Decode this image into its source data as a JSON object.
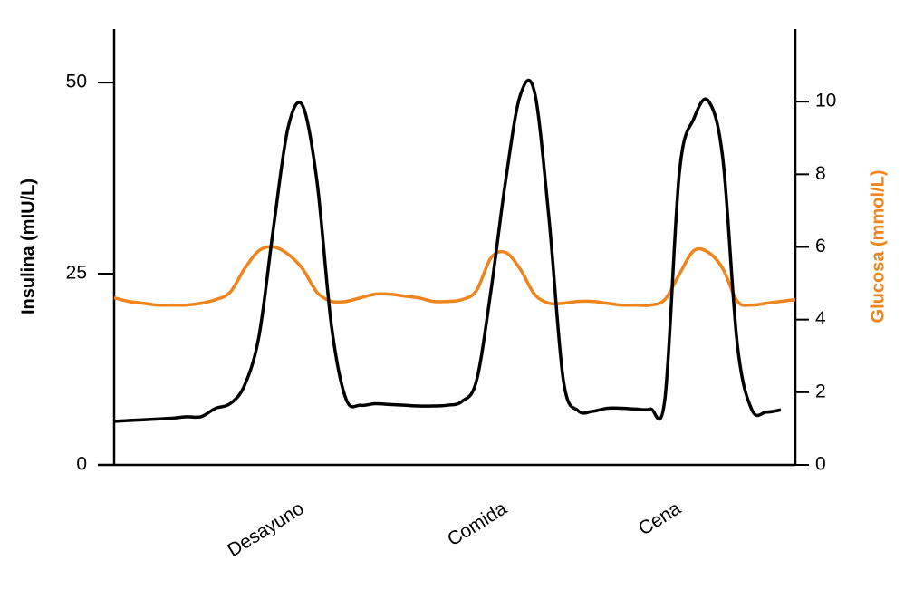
{
  "chart_data": {
    "type": "line",
    "ylabel": "Insulina (mIU/L)",
    "y2label": "Glucosa (mmol/L)",
    "categories": [
      null,
      null,
      null,
      null,
      null,
      null,
      null,
      null,
      null,
      null,
      null,
      null,
      null,
      "Desayuno",
      null,
      null,
      null,
      null,
      null,
      null,
      null,
      null,
      null,
      null,
      null,
      null,
      null,
      "Comida",
      null,
      null,
      null,
      null,
      null,
      null,
      null,
      null,
      null,
      null,
      null,
      "Cena",
      null,
      null,
      null,
      null,
      null,
      null,
      null,
      null
    ],
    "ylim": [
      0,
      57
    ],
    "yticks": [
      0,
      25,
      50
    ],
    "y2lim": [
      0,
      12
    ],
    "y2ticks": [
      0,
      2,
      4,
      6,
      8,
      10
    ],
    "series": [
      {
        "color": "#000000",
        "values": [
          5.7,
          5.8,
          5.9,
          6.0,
          6.1,
          6.3,
          6.3,
          7.4,
          8.0,
          10.4,
          16.9,
          31.1,
          44.1,
          47.0,
          37.0,
          18.1,
          8.6,
          7.8,
          8.0,
          7.9,
          7.8,
          7.7,
          7.7,
          7.8,
          8.3,
          11.0,
          22.8,
          37.0,
          48.2,
          48.8,
          32.3,
          11.0,
          7.1,
          7.0,
          7.4,
          7.4,
          7.3,
          7.3,
          8.6,
          38.2,
          45.3,
          47.6,
          40.0,
          15.7,
          7.2,
          6.9,
          7.2,
          null
        ]
      },
      {
        "color": "#f0841c",
        "axis": "y2",
        "values": [
          4.6,
          4.5,
          4.45,
          4.4,
          4.4,
          4.4,
          4.45,
          4.55,
          4.75,
          5.4,
          5.9,
          6.0,
          5.8,
          5.4,
          4.75,
          4.5,
          4.5,
          4.6,
          4.7,
          4.7,
          4.65,
          4.6,
          4.5,
          4.5,
          4.55,
          4.8,
          5.7,
          5.85,
          5.4,
          4.7,
          4.45,
          4.45,
          4.5,
          4.5,
          4.45,
          4.4,
          4.4,
          4.4,
          4.55,
          5.25,
          5.9,
          5.85,
          5.4,
          4.5,
          4.4,
          4.45,
          4.5,
          4.55
        ]
      }
    ]
  }
}
